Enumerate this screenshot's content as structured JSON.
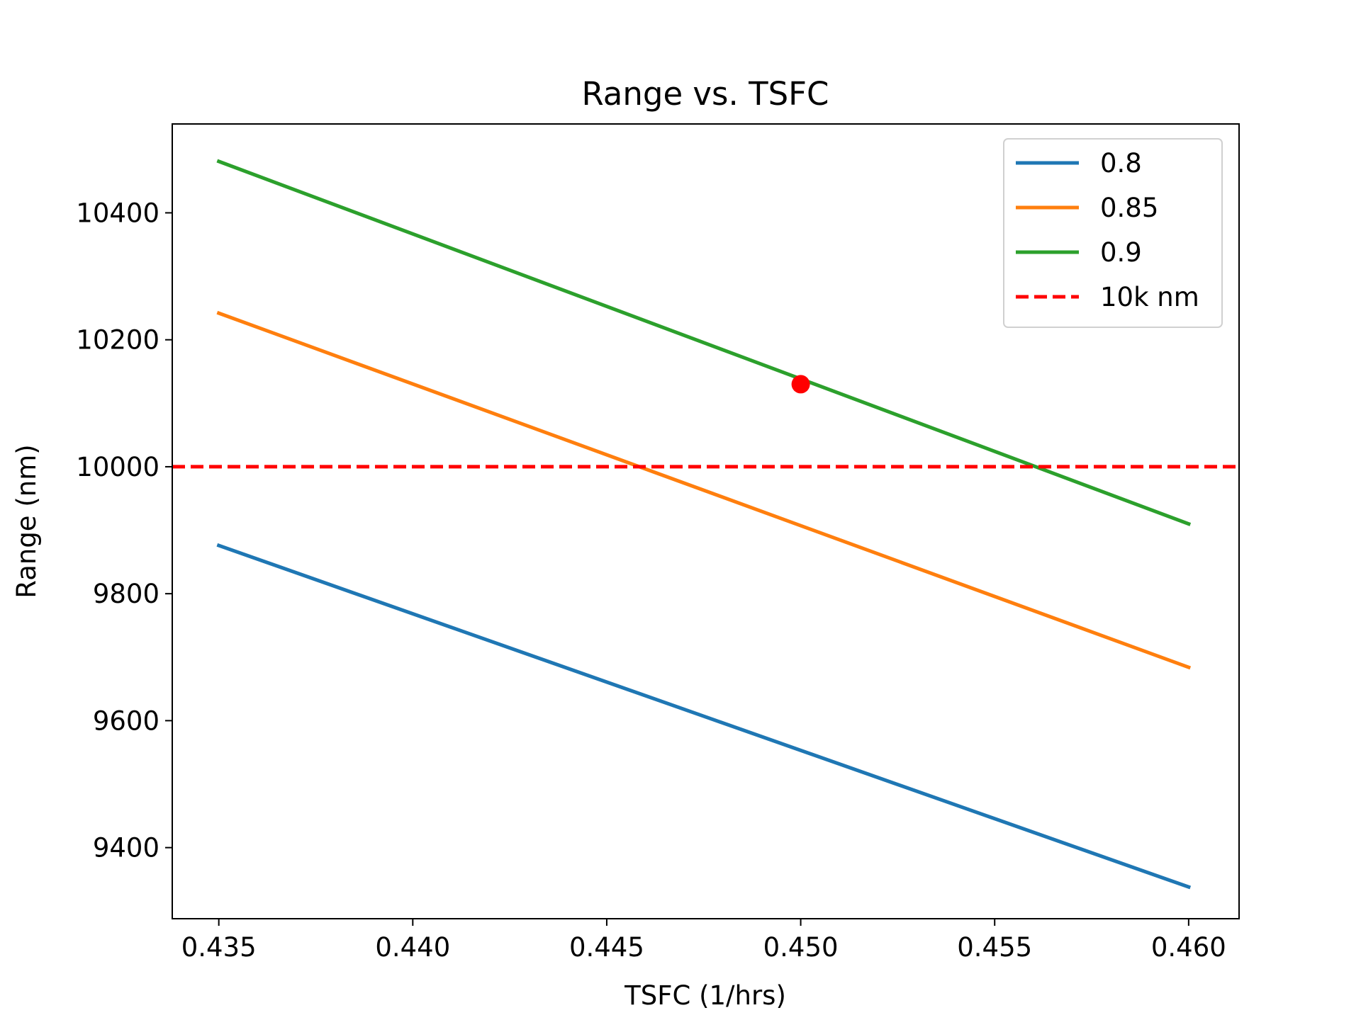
{
  "chart_data": {
    "type": "line",
    "title": "Range vs. TSFC",
    "xlabel": "TSFC (1/hrs)",
    "ylabel": "Range (nm)",
    "xlim": [
      0.4338,
      0.4613
    ],
    "ylim": [
      9288,
      10540
    ],
    "xticks": [
      0.435,
      0.44,
      0.445,
      0.45,
      0.455,
      0.46
    ],
    "xtick_labels": [
      "0.435",
      "0.440",
      "0.445",
      "0.450",
      "0.455",
      "0.460"
    ],
    "yticks": [
      9400,
      9600,
      9800,
      10000,
      10200,
      10400
    ],
    "ytick_labels": [
      "9400",
      "9600",
      "9800",
      "10000",
      "10200",
      "10400"
    ],
    "grid": false,
    "legend_position": "top-right",
    "series": [
      {
        "name": "0.8",
        "color": "#1f77b4",
        "style": "solid",
        "x": [
          0.435,
          0.46
        ],
        "y": [
          9876,
          9338
        ]
      },
      {
        "name": "0.85",
        "color": "#ff7f0e",
        "style": "solid",
        "x": [
          0.435,
          0.46
        ],
        "y": [
          10242,
          9684
        ]
      },
      {
        "name": "0.9",
        "color": "#2ca02c",
        "style": "solid",
        "x": [
          0.435,
          0.46
        ],
        "y": [
          10481,
          9910
        ]
      }
    ],
    "reference_line": {
      "name": "10k nm",
      "color": "#ff0000",
      "style": "dashed",
      "y": 10000
    },
    "marker": {
      "x": 0.45,
      "y": 10130,
      "color": "#ff0000"
    }
  }
}
